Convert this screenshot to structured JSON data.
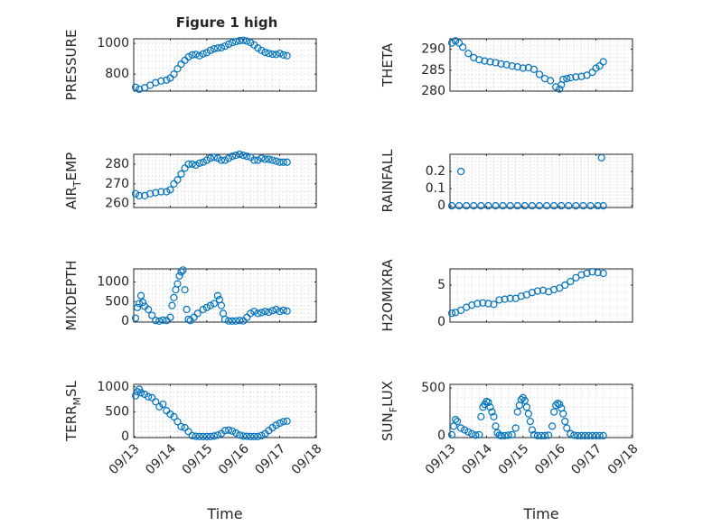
{
  "figure": {
    "title": "Figure 1 high"
  },
  "chart_data": [
    {
      "type": "scatter",
      "ylabel": "PRESSURE",
      "xlim": [
        0,
        5
      ],
      "ylim": [
        690,
        1030
      ],
      "yticks": [
        800,
        1000
      ],
      "xticks": [
        0,
        1,
        2,
        3,
        4,
        5
      ],
      "show_xticklabels": false,
      "grid": true,
      "color": "#0072bd",
      "marker": "circle-open",
      "series": [
        {
          "x": [
            0.05,
            0.15,
            0.3,
            0.45,
            0.6,
            0.75,
            0.9,
            1.0,
            1.1,
            1.2,
            1.3,
            1.4,
            1.5,
            1.6,
            1.7,
            1.8,
            1.9,
            2.0,
            2.1,
            2.2,
            2.3,
            2.4,
            2.5,
            2.6,
            2.7,
            2.8,
            2.9,
            3.0,
            3.1,
            3.2,
            3.3,
            3.4,
            3.5,
            3.6,
            3.7,
            3.8,
            3.9,
            4.0,
            4.1,
            4.2
          ],
          "y": [
            715,
            702,
            712,
            728,
            745,
            756,
            762,
            775,
            800,
            835,
            865,
            890,
            912,
            925,
            928,
            920,
            932,
            940,
            955,
            965,
            970,
            972,
            982,
            995,
            1005,
            1012,
            1018,
            1020,
            1015,
            1005,
            990,
            970,
            955,
            942,
            935,
            930,
            928,
            935,
            925,
            920
          ]
        }
      ]
    },
    {
      "type": "scatter",
      "ylabel": "THETA",
      "xlim": [
        0,
        5
      ],
      "ylim": [
        280,
        292.5
      ],
      "yticks": [
        280,
        285,
        290
      ],
      "xticks": [
        0,
        1,
        2,
        3,
        4,
        5
      ],
      "show_xticklabels": false,
      "grid": true,
      "color": "#0072bd",
      "marker": "circle-open",
      "series": [
        {
          "x": [
            0.05,
            0.15,
            0.25,
            0.35,
            0.5,
            0.65,
            0.8,
            0.95,
            1.1,
            1.25,
            1.4,
            1.55,
            1.7,
            1.85,
            2.0,
            2.15,
            2.3,
            2.45,
            2.6,
            2.75,
            2.9,
            3.0,
            3.05,
            3.1,
            3.2,
            3.3,
            3.45,
            3.6,
            3.75,
            3.9,
            4.0,
            4.1,
            4.2
          ],
          "y": [
            291.5,
            292,
            291.5,
            290.5,
            289,
            288,
            287.5,
            287.2,
            287,
            286.8,
            286.5,
            286.3,
            286,
            285.8,
            285.5,
            285.6,
            285.2,
            284,
            283,
            282.5,
            281,
            280.5,
            281.5,
            282.8,
            283,
            283.2,
            283.4,
            283.5,
            283.8,
            284.5,
            285.5,
            286,
            287
          ]
        }
      ]
    },
    {
      "type": "scatter",
      "ylabel": "AIR_TEMP",
      "xlim": [
        0,
        5
      ],
      "ylim": [
        258,
        285
      ],
      "yticks": [
        260,
        270,
        280
      ],
      "xticks": [
        0,
        1,
        2,
        3,
        4,
        5
      ],
      "show_xticklabels": false,
      "grid": true,
      "color": "#0072bd",
      "marker": "circle-open",
      "series": [
        {
          "x": [
            0.05,
            0.15,
            0.3,
            0.45,
            0.6,
            0.75,
            0.9,
            1.0,
            1.1,
            1.2,
            1.3,
            1.4,
            1.5,
            1.6,
            1.7,
            1.8,
            1.9,
            2.0,
            2.1,
            2.2,
            2.3,
            2.4,
            2.5,
            2.6,
            2.7,
            2.8,
            2.9,
            3.0,
            3.1,
            3.2,
            3.3,
            3.4,
            3.5,
            3.6,
            3.7,
            3.8,
            3.9,
            4.0,
            4.1,
            4.2
          ],
          "y": [
            265,
            264,
            264,
            265,
            265.5,
            266,
            266,
            267,
            270,
            272,
            275,
            278,
            280,
            280,
            279.5,
            280.5,
            281,
            282,
            283,
            283.5,
            283,
            282,
            282,
            283,
            284,
            284.5,
            285,
            284.5,
            284,
            283.5,
            282,
            282,
            283,
            282.5,
            282.5,
            282,
            281.5,
            281,
            281,
            281
          ]
        }
      ]
    },
    {
      "type": "scatter",
      "ylabel": "RAINFALL",
      "xlim": [
        0,
        5
      ],
      "ylim": [
        -0.01,
        0.3
      ],
      "yticks": [
        0,
        0.1,
        0.2
      ],
      "xticks": [
        0,
        1,
        2,
        3,
        4,
        5
      ],
      "show_xticklabels": false,
      "grid": true,
      "color": "#0072bd",
      "marker": "circle-open",
      "series": [
        {
          "x": [
            0.05,
            0.25,
            0.45,
            0.65,
            0.85,
            1.05,
            1.25,
            1.45,
            1.65,
            1.85,
            2.05,
            2.25,
            2.45,
            2.65,
            2.85,
            3.05,
            3.25,
            3.45,
            3.65,
            3.85,
            4.05,
            4.2,
            0.3,
            4.15
          ],
          "y": [
            0,
            0,
            0,
            0,
            0,
            0,
            0,
            0,
            0,
            0,
            0,
            0,
            0,
            0,
            0,
            0,
            0,
            0,
            0,
            0,
            0,
            0,
            0.2,
            0.28
          ]
        }
      ]
    },
    {
      "type": "scatter",
      "ylabel": "MIXDEPTH",
      "xlim": [
        0,
        5
      ],
      "ylim": [
        -20,
        1330
      ],
      "yticks": [
        0,
        500,
        1000
      ],
      "xticks": [
        0,
        1,
        2,
        3,
        4,
        5
      ],
      "show_xticklabels": false,
      "grid": true,
      "color": "#0072bd",
      "marker": "circle-open",
      "series": [
        {
          "x": [
            0.05,
            0.1,
            0.15,
            0.2,
            0.25,
            0.3,
            0.4,
            0.5,
            0.6,
            0.7,
            0.8,
            0.9,
            1.0,
            1.05,
            1.1,
            1.15,
            1.2,
            1.25,
            1.3,
            1.35,
            1.4,
            1.45,
            1.5,
            1.55,
            1.65,
            1.75,
            1.9,
            2.0,
            2.1,
            2.2,
            2.3,
            2.35,
            2.4,
            2.45,
            2.5,
            2.6,
            2.7,
            2.8,
            2.9,
            3.0,
            3.1,
            3.2,
            3.3,
            3.4,
            3.5,
            3.6,
            3.7,
            3.8,
            3.9,
            4.0,
            4.1,
            4.2
          ],
          "y": [
            80,
            350,
            450,
            650,
            480,
            380,
            300,
            150,
            20,
            5,
            30,
            20,
            100,
            400,
            600,
            800,
            950,
            1150,
            1250,
            1300,
            800,
            300,
            50,
            20,
            100,
            200,
            300,
            350,
            400,
            450,
            650,
            550,
            400,
            200,
            50,
            10,
            5,
            10,
            20,
            10,
            100,
            200,
            250,
            200,
            220,
            250,
            230,
            270,
            300,
            250,
            280,
            260
          ]
        }
      ]
    },
    {
      "type": "scatter",
      "ylabel": "H2OMIXRA",
      "xlim": [
        0,
        5
      ],
      "ylim": [
        0,
        7.2
      ],
      "yticks": [
        0,
        5
      ],
      "xticks": [
        0,
        1,
        2,
        3,
        4,
        5
      ],
      "show_xticklabels": false,
      "grid": true,
      "color": "#0072bd",
      "marker": "circle-open",
      "series": [
        {
          "x": [
            0.05,
            0.15,
            0.3,
            0.45,
            0.6,
            0.75,
            0.9,
            1.05,
            1.2,
            1.35,
            1.5,
            1.65,
            1.8,
            1.95,
            2.1,
            2.25,
            2.4,
            2.55,
            2.7,
            2.85,
            3.0,
            3.15,
            3.3,
            3.45,
            3.6,
            3.75,
            3.9,
            4.05,
            4.2
          ],
          "y": [
            1.2,
            1.3,
            1.6,
            2.0,
            2.3,
            2.5,
            2.6,
            2.5,
            2.4,
            3.0,
            3.1,
            3.2,
            3.2,
            3.5,
            3.7,
            4.0,
            4.2,
            4.3,
            4.1,
            4.4,
            4.6,
            5.0,
            5.5,
            6.0,
            6.4,
            6.6,
            6.8,
            6.7,
            6.6
          ]
        }
      ]
    },
    {
      "type": "scatter",
      "ylabel": "TERR_MSL",
      "xlim": [
        0,
        5
      ],
      "ylim": [
        -20,
        1050
      ],
      "yticks": [
        0,
        500,
        1000
      ],
      "xticks": [
        0,
        1,
        2,
        3,
        4,
        5
      ],
      "xticklabels": [
        "09/13",
        "09/14",
        "09/15",
        "09/16",
        "09/17",
        "09/18"
      ],
      "xlabel": "Time",
      "grid": true,
      "color": "#0072bd",
      "marker": "circle-open",
      "series": [
        {
          "x": [
            0.05,
            0.1,
            0.15,
            0.2,
            0.3,
            0.4,
            0.5,
            0.6,
            0.7,
            0.8,
            0.9,
            1.0,
            1.1,
            1.2,
            1.3,
            1.4,
            1.5,
            1.6,
            1.7,
            1.8,
            1.9,
            2.0,
            2.1,
            2.2,
            2.3,
            2.4,
            2.5,
            2.6,
            2.7,
            2.8,
            2.9,
            3.0,
            3.1,
            3.2,
            3.3,
            3.4,
            3.5,
            3.6,
            3.7,
            3.8,
            3.9,
            4.0,
            4.1,
            4.2
          ],
          "y": [
            820,
            900,
            950,
            880,
            850,
            800,
            780,
            700,
            600,
            650,
            520,
            450,
            400,
            300,
            200,
            180,
            100,
            20,
            5,
            0,
            0,
            0,
            0,
            10,
            30,
            60,
            120,
            130,
            110,
            70,
            30,
            10,
            5,
            0,
            0,
            0,
            20,
            60,
            120,
            180,
            230,
            270,
            300,
            310
          ]
        }
      ]
    },
    {
      "type": "scatter",
      "ylabel": "SUN_FLUX",
      "xlim": [
        0,
        5
      ],
      "ylim": [
        -20,
        540
      ],
      "yticks": [
        0,
        500
      ],
      "xticks": [
        0,
        1,
        2,
        3,
        4,
        5
      ],
      "xticklabels": [
        "09/13",
        "09/14",
        "09/15",
        "09/16",
        "09/17",
        "09/18"
      ],
      "xlabel": "Time",
      "grid": true,
      "color": "#0072bd",
      "marker": "circle-open",
      "series": [
        {
          "x": [
            0.05,
            0.1,
            0.15,
            0.2,
            0.3,
            0.4,
            0.5,
            0.6,
            0.7,
            0.8,
            0.85,
            0.9,
            0.95,
            1.0,
            1.05,
            1.1,
            1.15,
            1.2,
            1.25,
            1.3,
            1.35,
            1.4,
            1.5,
            1.6,
            1.7,
            1.8,
            1.85,
            1.9,
            1.95,
            2.0,
            2.05,
            2.1,
            2.15,
            2.2,
            2.25,
            2.3,
            2.4,
            2.5,
            2.6,
            2.7,
            2.8,
            2.85,
            2.9,
            2.95,
            3.0,
            3.05,
            3.1,
            3.15,
            3.2,
            3.3,
            3.4,
            3.5,
            3.6,
            3.7,
            3.8,
            3.9,
            4.0,
            4.1,
            4.2
          ],
          "y": [
            10,
            100,
            170,
            150,
            80,
            60,
            40,
            20,
            5,
            10,
            200,
            300,
            330,
            360,
            350,
            300,
            250,
            200,
            100,
            30,
            5,
            0,
            0,
            5,
            10,
            80,
            250,
            320,
            380,
            400,
            370,
            300,
            230,
            150,
            60,
            10,
            0,
            0,
            0,
            5,
            100,
            250,
            320,
            340,
            330,
            290,
            230,
            150,
            80,
            20,
            5,
            0,
            0,
            0,
            0,
            0,
            0,
            0,
            0
          ]
        }
      ]
    }
  ]
}
